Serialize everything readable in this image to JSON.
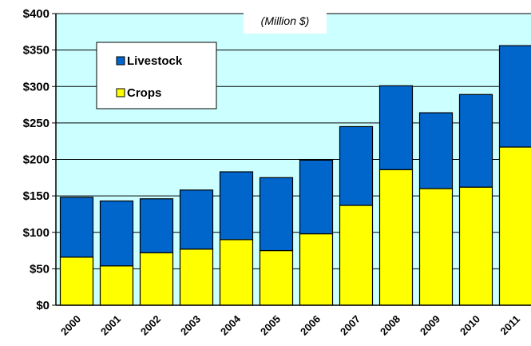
{
  "chart_data": {
    "type": "bar",
    "stacked": true,
    "subtitle": "(Million $)",
    "categories": [
      "2000",
      "2001",
      "2002",
      "2003",
      "2004",
      "2005",
      "2006",
      "2007",
      "2008",
      "2009",
      "2010",
      "2011"
    ],
    "series": [
      {
        "name": "Crops",
        "color": "#ffff00",
        "values": [
          66,
          54,
          72,
          77,
          90,
          75,
          98,
          137,
          186,
          160,
          162,
          217
        ]
      },
      {
        "name": "Livestock",
        "color": "#0066cc",
        "values": [
          82,
          89,
          74,
          81,
          93,
          100,
          101,
          108,
          115,
          104,
          127,
          139
        ]
      }
    ],
    "ylim": [
      0,
      400
    ],
    "yticks": [
      "$0",
      "$50",
      "$100",
      "$150",
      "$200",
      "$250",
      "$300",
      "$350",
      "$400"
    ],
    "ytick_values": [
      0,
      50,
      100,
      150,
      200,
      250,
      300,
      350,
      400
    ],
    "plot_background": "#ccffff",
    "grid": true,
    "legend_position": "top-left"
  }
}
